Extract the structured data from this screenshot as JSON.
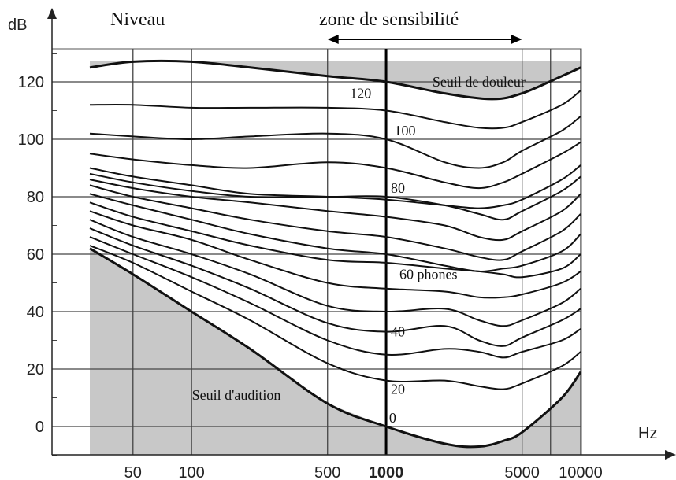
{
  "chart_data": {
    "type": "line",
    "title": "",
    "y_unit": "dB",
    "x_unit": "Hz",
    "x_scale": "log",
    "ylim": [
      -10,
      130
    ],
    "xlim": [
      30,
      10000
    ],
    "y_ticks": [
      0,
      20,
      40,
      60,
      80,
      100,
      120
    ],
    "x_ticks": [
      {
        "value": 50,
        "label": "50",
        "bold": false
      },
      {
        "value": 100,
        "label": "100",
        "bold": false
      },
      {
        "value": 500,
        "label": "500",
        "bold": false
      },
      {
        "value": 1000,
        "label": "1000",
        "bold": true
      },
      {
        "value": 5000,
        "label": "5000",
        "bold": false
      },
      {
        "value": 10000,
        "label": "10000",
        "bold": false
      }
    ],
    "header_left": "Niveau",
    "header_center": "zone de sensibilité",
    "sensitivity_zone_hz": [
      500,
      5000
    ],
    "grid": true,
    "shading": "gray outside audible area",
    "series": [
      {
        "label": "Seuil de douleur",
        "thick": true,
        "x": [
          30,
          50,
          100,
          200,
          500,
          1000,
          2000,
          3500,
          5000,
          8000,
          10000
        ],
        "y": [
          125,
          127,
          127,
          125,
          122,
          120,
          116,
          114,
          116,
          122,
          125
        ]
      },
      {
        "label": "",
        "thick": false,
        "x": [
          30,
          50,
          100,
          200,
          500,
          1000,
          2000,
          3000,
          4000,
          5000,
          8000,
          10000
        ],
        "y": [
          112,
          112,
          111,
          111,
          111,
          110,
          106,
          104,
          104,
          106,
          112,
          117
        ]
      },
      {
        "label": "",
        "thick": false,
        "x": [
          30,
          50,
          100,
          200,
          500,
          1000,
          2000,
          3000,
          4000,
          5000,
          8000,
          10000
        ],
        "y": [
          102,
          101,
          100,
          101,
          102,
          100,
          92,
          90,
          92,
          96,
          103,
          108
        ]
      },
      {
        "label": "",
        "thick": false,
        "x": [
          30,
          50,
          100,
          200,
          500,
          1000,
          2000,
          3000,
          4000,
          5000,
          8000,
          10000
        ],
        "y": [
          95,
          93,
          91,
          90,
          92,
          90,
          85,
          83,
          85,
          88,
          95,
          99
        ]
      },
      {
        "label": "",
        "thick": false,
        "x": [
          30,
          50,
          100,
          200,
          500,
          1000,
          2000,
          3000,
          4000,
          5000,
          8000,
          10000
        ],
        "y": [
          90,
          87,
          84,
          81,
          80,
          79,
          77,
          76,
          77,
          79,
          86,
          91
        ]
      },
      {
        "label": "",
        "thick": false,
        "x": [
          30,
          50,
          100,
          200,
          500,
          1000,
          2000,
          3000,
          4000,
          5000,
          8000,
          10000
        ],
        "y": [
          88,
          85,
          82,
          80,
          80,
          80,
          77,
          74,
          72,
          75,
          82,
          87
        ]
      },
      {
        "label": "",
        "thick": false,
        "x": [
          30,
          50,
          100,
          200,
          500,
          1000,
          2000,
          3000,
          4000,
          5000,
          8000,
          10000
        ],
        "y": [
          86,
          83,
          80,
          78,
          75,
          73,
          70,
          66,
          65,
          68,
          75,
          81
        ]
      },
      {
        "label": "",
        "thick": false,
        "x": [
          30,
          50,
          100,
          200,
          500,
          1000,
          2000,
          3000,
          4000,
          5000,
          8000,
          10000
        ],
        "y": [
          84,
          80,
          76,
          72,
          68,
          66,
          62,
          59,
          58,
          61,
          68,
          74
        ]
      },
      {
        "label": "",
        "thick": false,
        "x": [
          30,
          50,
          100,
          200,
          500,
          1000,
          2000,
          3000,
          4000,
          5000,
          8000,
          10000
        ],
        "y": [
          81,
          77,
          72,
          67,
          62,
          60,
          56,
          54,
          55,
          56,
          61,
          67
        ]
      },
      {
        "label": "",
        "thick": false,
        "x": [
          30,
          50,
          100,
          200,
          500,
          1000,
          2000,
          3000,
          4000,
          5000,
          8000,
          10000
        ],
        "y": [
          78,
          73,
          68,
          63,
          58,
          57,
          55,
          54,
          53,
          52,
          55,
          60
        ]
      },
      {
        "label": "",
        "thick": false,
        "x": [
          30,
          50,
          100,
          200,
          500,
          1000,
          2000,
          3000,
          4000,
          5000,
          8000,
          10000
        ],
        "y": [
          75,
          70,
          65,
          58,
          50,
          48,
          47,
          45,
          45,
          46,
          50,
          54
        ]
      },
      {
        "label": "",
        "thick": false,
        "x": [
          30,
          50,
          100,
          200,
          500,
          1000,
          2000,
          3000,
          4000,
          5000,
          8000,
          10000
        ],
        "y": [
          72,
          66,
          60,
          53,
          42,
          40,
          41,
          37,
          35,
          37,
          43,
          48
        ]
      },
      {
        "label": "",
        "thick": false,
        "x": [
          30,
          50,
          100,
          200,
          500,
          1000,
          2000,
          3000,
          4000,
          5000,
          8000,
          10000
        ],
        "y": [
          69,
          63,
          56,
          48,
          36,
          33,
          35,
          30,
          28,
          31,
          37,
          41
        ]
      },
      {
        "label": "",
        "thick": false,
        "x": [
          30,
          50,
          100,
          200,
          500,
          1000,
          2000,
          3000,
          4000,
          5000,
          8000,
          10000
        ],
        "y": [
          66,
          60,
          52,
          43,
          30,
          25,
          27,
          26,
          24,
          26,
          30,
          34
        ]
      },
      {
        "label": "",
        "thick": false,
        "x": [
          30,
          50,
          100,
          200,
          500,
          1000,
          2000,
          3000,
          4000,
          5000,
          8000,
          10000
        ],
        "y": [
          63,
          57,
          47,
          37,
          22,
          16,
          16,
          14,
          13,
          15,
          21,
          26
        ]
      },
      {
        "label": "Seuil d'audition",
        "thick": true,
        "x": [
          30,
          50,
          100,
          200,
          500,
          1000,
          2000,
          3000,
          4000,
          5000,
          8000,
          10000
        ],
        "y": [
          62,
          53,
          40,
          27,
          8,
          0,
          -6,
          -7,
          -5,
          -2,
          10,
          19
        ]
      }
    ],
    "annotations": [
      {
        "text": "Seuil de douleur",
        "x": 3000,
        "y": 120
      },
      {
        "text": "120",
        "x": 740,
        "y": 116
      },
      {
        "text": "100",
        "x": 1250,
        "y": 103
      },
      {
        "text": "80",
        "x": 1150,
        "y": 83
      },
      {
        "text": "60 phones",
        "x": 1650,
        "y": 53
      },
      {
        "text": "40",
        "x": 1150,
        "y": 33
      },
      {
        "text": "20",
        "x": 1150,
        "y": 13
      },
      {
        "text": "0",
        "x": 1080,
        "y": 3
      },
      {
        "text": "Seuil d'audition",
        "x": 170,
        "y": 11
      }
    ]
  }
}
